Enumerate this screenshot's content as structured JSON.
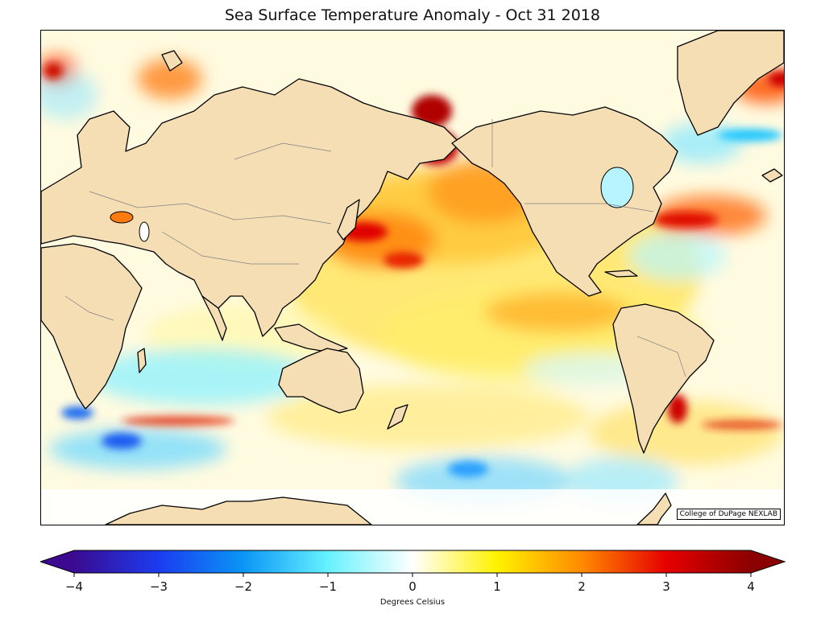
{
  "title": "Sea Surface Temperature Anomaly - Oct 31 2018",
  "credit": "College of DuPage NEXLAB",
  "colorbar": {
    "label": "Degrees Celsius",
    "min": -4,
    "max": 4,
    "ticks": [
      -4,
      -3,
      -2,
      -1,
      0,
      1,
      2,
      3,
      4
    ],
    "tick_labels": [
      "−4",
      "−3",
      "−2",
      "−1",
      "0",
      "1",
      "2",
      "3",
      "4"
    ],
    "stops": [
      {
        "value": -4,
        "color": "#3b0a91"
      },
      {
        "value": -3,
        "color": "#1b3cf0"
      },
      {
        "value": -2,
        "color": "#0a96f5"
      },
      {
        "value": -1,
        "color": "#66f2ff"
      },
      {
        "value": 0,
        "color": "#ffffff"
      },
      {
        "value": 1,
        "color": "#fff200"
      },
      {
        "value": 2,
        "color": "#ff8a00"
      },
      {
        "value": 3,
        "color": "#e60000"
      },
      {
        "value": 4,
        "color": "#8b0000"
      }
    ]
  },
  "colors": {
    "land": "#f5deb3",
    "coast": "#000000",
    "border": "#808080"
  }
}
